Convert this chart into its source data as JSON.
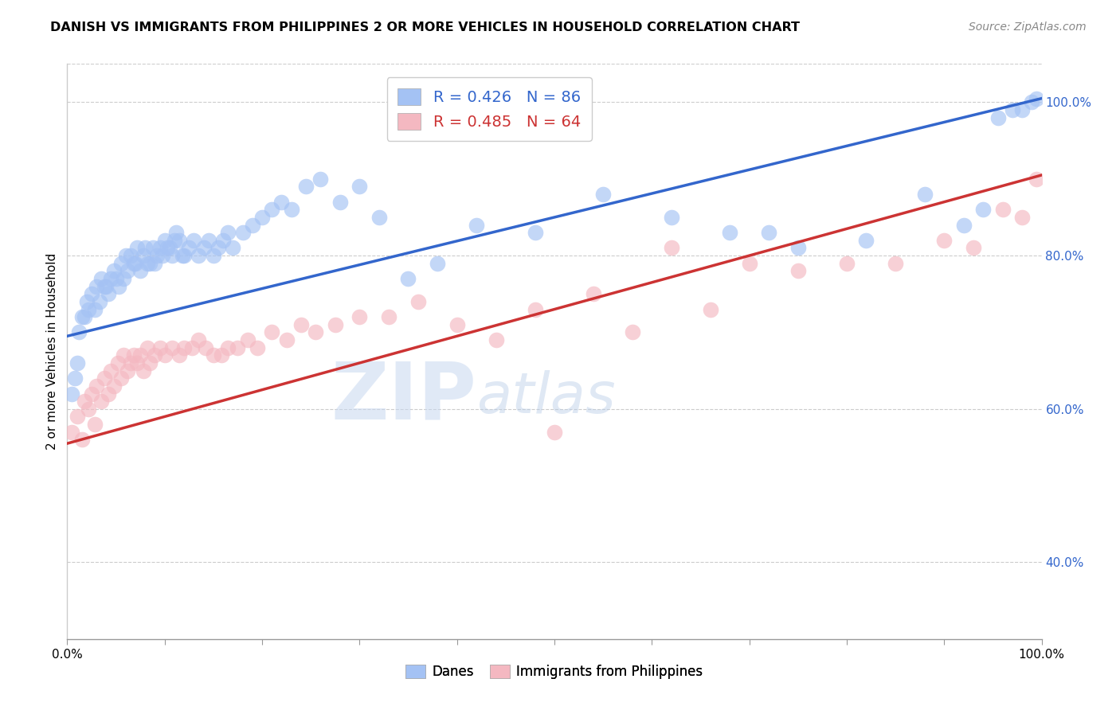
{
  "title": "DANISH VS IMMIGRANTS FROM PHILIPPINES 2 OR MORE VEHICLES IN HOUSEHOLD CORRELATION CHART",
  "source": "Source: ZipAtlas.com",
  "ylabel": "2 or more Vehicles in Household",
  "legend_blue_r": "R = 0.426",
  "legend_blue_n": "N = 86",
  "legend_pink_r": "R = 0.485",
  "legend_pink_n": "N = 64",
  "blue_color": "#a4c2f4",
  "pink_color": "#f4b8c1",
  "blue_line_color": "#3366cc",
  "pink_line_color": "#cc3333",
  "blue_line_start_y": 0.695,
  "blue_line_end_y": 1.005,
  "pink_line_start_y": 0.555,
  "pink_line_end_y": 0.905,
  "xlim": [
    0.0,
    1.0
  ],
  "ylim": [
    0.3,
    1.05
  ],
  "yticks": [
    0.4,
    0.6,
    0.8,
    1.0
  ],
  "ytick_labels": [
    "40.0%",
    "60.0%",
    "80.0%",
    "100.0%"
  ],
  "xtick_labels_shown": [
    "0.0%",
    "100.0%"
  ],
  "watermark_zip": "ZIP",
  "watermark_atlas": "atlas",
  "blue_x": [
    0.005,
    0.008,
    0.01,
    0.012,
    0.015,
    0.018,
    0.02,
    0.022,
    0.025,
    0.028,
    0.03,
    0.033,
    0.035,
    0.038,
    0.04,
    0.042,
    0.045,
    0.048,
    0.05,
    0.053,
    0.055,
    0.058,
    0.06,
    0.062,
    0.065,
    0.068,
    0.07,
    0.072,
    0.075,
    0.078,
    0.08,
    0.082,
    0.085,
    0.088,
    0.09,
    0.092,
    0.095,
    0.098,
    0.1,
    0.103,
    0.105,
    0.108,
    0.11,
    0.112,
    0.115,
    0.118,
    0.12,
    0.125,
    0.13,
    0.135,
    0.14,
    0.145,
    0.15,
    0.155,
    0.16,
    0.165,
    0.17,
    0.18,
    0.19,
    0.2,
    0.21,
    0.22,
    0.23,
    0.245,
    0.26,
    0.28,
    0.3,
    0.32,
    0.35,
    0.38,
    0.42,
    0.48,
    0.55,
    0.62,
    0.68,
    0.72,
    0.75,
    0.82,
    0.88,
    0.92,
    0.94,
    0.955,
    0.97,
    0.98,
    0.99,
    0.995
  ],
  "blue_y": [
    0.62,
    0.64,
    0.66,
    0.7,
    0.72,
    0.72,
    0.74,
    0.73,
    0.75,
    0.73,
    0.76,
    0.74,
    0.77,
    0.76,
    0.76,
    0.75,
    0.77,
    0.78,
    0.77,
    0.76,
    0.79,
    0.77,
    0.8,
    0.78,
    0.8,
    0.79,
    0.79,
    0.81,
    0.78,
    0.8,
    0.81,
    0.79,
    0.79,
    0.81,
    0.79,
    0.8,
    0.81,
    0.8,
    0.82,
    0.81,
    0.81,
    0.8,
    0.82,
    0.83,
    0.82,
    0.8,
    0.8,
    0.81,
    0.82,
    0.8,
    0.81,
    0.82,
    0.8,
    0.81,
    0.82,
    0.83,
    0.81,
    0.83,
    0.84,
    0.85,
    0.86,
    0.87,
    0.86,
    0.89,
    0.9,
    0.87,
    0.89,
    0.85,
    0.77,
    0.79,
    0.84,
    0.83,
    0.88,
    0.85,
    0.83,
    0.83,
    0.81,
    0.82,
    0.88,
    0.84,
    0.86,
    0.98,
    0.99,
    0.99,
    1.0,
    1.005
  ],
  "pink_x": [
    0.005,
    0.01,
    0.015,
    0.018,
    0.022,
    0.025,
    0.028,
    0.03,
    0.035,
    0.038,
    0.042,
    0.045,
    0.048,
    0.052,
    0.055,
    0.058,
    0.062,
    0.065,
    0.068,
    0.072,
    0.075,
    0.078,
    0.082,
    0.085,
    0.09,
    0.095,
    0.1,
    0.108,
    0.115,
    0.12,
    0.128,
    0.135,
    0.142,
    0.15,
    0.158,
    0.165,
    0.175,
    0.185,
    0.195,
    0.21,
    0.225,
    0.24,
    0.255,
    0.275,
    0.3,
    0.33,
    0.36,
    0.4,
    0.44,
    0.48,
    0.5,
    0.54,
    0.58,
    0.62,
    0.66,
    0.7,
    0.75,
    0.8,
    0.85,
    0.9,
    0.93,
    0.96,
    0.98,
    0.995
  ],
  "pink_y": [
    0.57,
    0.59,
    0.56,
    0.61,
    0.6,
    0.62,
    0.58,
    0.63,
    0.61,
    0.64,
    0.62,
    0.65,
    0.63,
    0.66,
    0.64,
    0.67,
    0.65,
    0.66,
    0.67,
    0.66,
    0.67,
    0.65,
    0.68,
    0.66,
    0.67,
    0.68,
    0.67,
    0.68,
    0.67,
    0.68,
    0.68,
    0.69,
    0.68,
    0.67,
    0.67,
    0.68,
    0.68,
    0.69,
    0.68,
    0.7,
    0.69,
    0.71,
    0.7,
    0.71,
    0.72,
    0.72,
    0.74,
    0.71,
    0.69,
    0.73,
    0.57,
    0.75,
    0.7,
    0.81,
    0.73,
    0.79,
    0.78,
    0.79,
    0.79,
    0.82,
    0.81,
    0.86,
    0.85,
    0.9
  ]
}
